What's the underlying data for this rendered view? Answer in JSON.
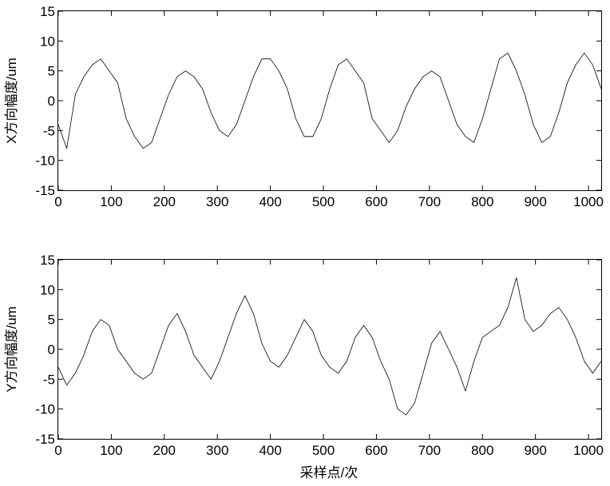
{
  "chart_data": [
    {
      "type": "line",
      "ylabel": "X方向幅度/um",
      "xlabel": "",
      "xlim": [
        0,
        1024
      ],
      "ylim": [
        -15,
        15
      ],
      "x_ticks": [
        0,
        100,
        200,
        300,
        400,
        500,
        600,
        700,
        800,
        900,
        1000
      ],
      "y_ticks": [
        -15,
        -10,
        -5,
        0,
        5,
        10,
        15
      ],
      "x_tick_labels": [
        "0",
        "100",
        "200",
        "300",
        "400",
        "500",
        "600",
        "700",
        "800",
        "900",
        "1000"
      ],
      "y_tick_labels": [
        "-15",
        "-10",
        "-5",
        "0",
        "5",
        "10",
        "15"
      ],
      "grid": false,
      "series": [
        {
          "color": "#000000",
          "x_step": 16,
          "values": [
            -4,
            -8,
            1,
            4,
            6,
            7,
            5,
            3,
            -3,
            -6,
            -8,
            -7,
            -3,
            1,
            4,
            5,
            4,
            2,
            -2,
            -5,
            -6,
            -4,
            0,
            4,
            7,
            7,
            5,
            2,
            -3,
            -6,
            -6,
            -3,
            2,
            6,
            7,
            5,
            3,
            -3,
            -5,
            -7,
            -5,
            -1,
            2,
            4,
            5,
            4,
            0,
            -4,
            -6,
            -7,
            -3,
            2,
            7,
            8,
            5,
            1,
            -4,
            -7,
            -6,
            -2,
            3,
            6,
            8,
            6,
            2
          ]
        }
      ]
    },
    {
      "type": "line",
      "ylabel": "Y方向幅度/um",
      "xlabel": "采样点/次",
      "xlim": [
        0,
        1024
      ],
      "ylim": [
        -15,
        15
      ],
      "x_ticks": [
        0,
        100,
        200,
        300,
        400,
        500,
        600,
        700,
        800,
        900,
        1000
      ],
      "y_ticks": [
        -15,
        -10,
        -5,
        0,
        5,
        10,
        15
      ],
      "x_tick_labels": [
        "0",
        "100",
        "200",
        "300",
        "400",
        "500",
        "600",
        "700",
        "800",
        "900",
        "1000"
      ],
      "y_tick_labels": [
        "-15",
        "-10",
        "-5",
        "0",
        "5",
        "10",
        "15"
      ],
      "grid": false,
      "series": [
        {
          "color": "#000000",
          "x_step": 16,
          "values": [
            -3,
            -6,
            -4,
            -1,
            3,
            5,
            4,
            0,
            -2,
            -4,
            -5,
            -4,
            0,
            4,
            6,
            3,
            -1,
            -3,
            -5,
            -2,
            2,
            6,
            9,
            6,
            1,
            -2,
            -3,
            -1,
            2,
            5,
            3,
            -1,
            -3,
            -4,
            -2,
            2,
            4,
            2,
            -2,
            -5,
            -10,
            -11,
            -9,
            -4,
            1,
            3,
            0,
            -3,
            -7,
            -2,
            2,
            3,
            4,
            7,
            12,
            5,
            3,
            4,
            6,
            7,
            5,
            2,
            -2,
            -4,
            -2
          ]
        }
      ]
    }
  ]
}
